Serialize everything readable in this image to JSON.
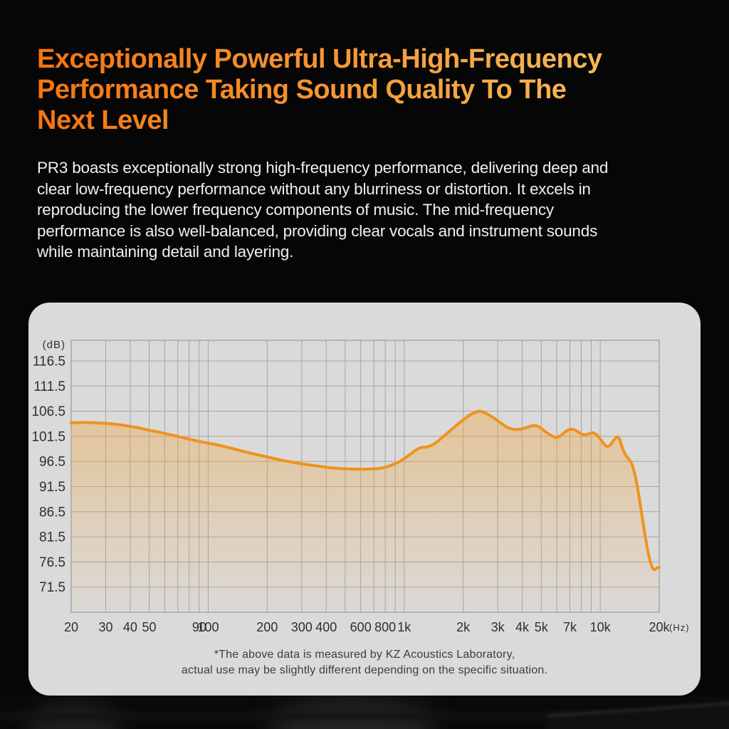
{
  "page": {
    "background_color": "#060606",
    "heading": {
      "lines": [
        "Exceptionally Powerful Ultra-High-Frequency",
        "Performance Taking Sound Quality To The",
        "Next Level"
      ],
      "gradient_colors": [
        "#f5740f",
        "#f59f3d",
        "#f2c767"
      ]
    },
    "paragraph_lines": [
      "PR3 boasts exceptionally strong high-frequency performance, delivering deep and",
      "clear low-frequency performance without any blurriness or distortion. It excels in",
      "reproducing the lower frequency components of music. The mid-frequency",
      "performance is also well-balanced, providing clear vocals and instrument sounds",
      "while maintaining detail and layering."
    ]
  },
  "chart_data": {
    "type": "area",
    "title": "",
    "xlabel": "(Hz)",
    "ylabel": "(dB)",
    "x_scale": "log",
    "x_range": [
      20,
      20000
    ],
    "y_top_value": 120.6,
    "y_bottom_value": 66.5,
    "y_gridline_values": [
      116.5,
      111.5,
      106.5,
      101.5,
      96.5,
      91.5,
      86.5,
      81.5,
      76.5,
      71.5
    ],
    "x_gridline_values": [
      20,
      30,
      40,
      50,
      60,
      70,
      80,
      90,
      100,
      200,
      300,
      400,
      500,
      600,
      700,
      800,
      900,
      1000,
      2000,
      3000,
      4000,
      5000,
      6000,
      7000,
      8000,
      9000,
      10000,
      20000
    ],
    "x_tick_labels": [
      {
        "f": 20,
        "t": "20"
      },
      {
        "f": 30,
        "t": "30"
      },
      {
        "f": 40,
        "t": "40"
      },
      {
        "f": 50,
        "t": "50"
      },
      {
        "f": 90,
        "t": "90"
      },
      {
        "f": 100,
        "t": "100"
      },
      {
        "f": 200,
        "t": "200"
      },
      {
        "f": 300,
        "t": "300"
      },
      {
        "f": 400,
        "t": "400"
      },
      {
        "f": 600,
        "t": "600"
      },
      {
        "f": 800,
        "t": "800"
      },
      {
        "f": 1000,
        "t": "1k"
      },
      {
        "f": 2000,
        "t": "2k"
      },
      {
        "f": 3000,
        "t": "3k"
      },
      {
        "f": 4000,
        "t": "4k"
      },
      {
        "f": 5000,
        "t": "5k"
      },
      {
        "f": 7000,
        "t": "7k"
      },
      {
        "f": 10000,
        "t": "10k"
      },
      {
        "f": 20000,
        "t": "20k"
      }
    ],
    "grid": true,
    "legend": "none",
    "colors": {
      "card_bg": "#dadada",
      "grid": "#a5a5a5",
      "border": "#9a9a9a",
      "tick_text": "#2f2f2f",
      "curve": "#f0921e",
      "fill_top": "rgba(242,160,44,0.50)",
      "fill_bottom": "rgba(242,160,44,0.02)"
    },
    "series": [
      {
        "name": "response",
        "color": "#f0921e",
        "points": [
          [
            20,
            104.2
          ],
          [
            24,
            104.25
          ],
          [
            28,
            104.15
          ],
          [
            33,
            103.95
          ],
          [
            38,
            103.6
          ],
          [
            44,
            103.2
          ],
          [
            50,
            102.7
          ],
          [
            58,
            102.2
          ],
          [
            66,
            101.7
          ],
          [
            75,
            101.2
          ],
          [
            85,
            100.7
          ],
          [
            95,
            100.3
          ],
          [
            105,
            100.0
          ],
          [
            120,
            99.5
          ],
          [
            135,
            99.0
          ],
          [
            155,
            98.4
          ],
          [
            180,
            97.8
          ],
          [
            210,
            97.2
          ],
          [
            240,
            96.7
          ],
          [
            275,
            96.3
          ],
          [
            315,
            95.9
          ],
          [
            360,
            95.6
          ],
          [
            410,
            95.3
          ],
          [
            470,
            95.1
          ],
          [
            530,
            95.0
          ],
          [
            600,
            94.95
          ],
          [
            670,
            95.0
          ],
          [
            740,
            95.1
          ],
          [
            810,
            95.4
          ],
          [
            880,
            95.9
          ],
          [
            950,
            96.5
          ],
          [
            1020,
            97.3
          ],
          [
            1090,
            98.1
          ],
          [
            1160,
            98.9
          ],
          [
            1230,
            99.3
          ],
          [
            1300,
            99.35
          ],
          [
            1380,
            99.7
          ],
          [
            1480,
            100.5
          ],
          [
            1600,
            101.6
          ],
          [
            1750,
            102.9
          ],
          [
            1900,
            104.1
          ],
          [
            2050,
            105.1
          ],
          [
            2200,
            105.9
          ],
          [
            2350,
            106.4
          ],
          [
            2450,
            106.5
          ],
          [
            2600,
            106.1
          ],
          [
            2750,
            105.6
          ],
          [
            3000,
            104.6
          ],
          [
            3200,
            103.8
          ],
          [
            3400,
            103.2
          ],
          [
            3600,
            102.9
          ],
          [
            3800,
            102.85
          ],
          [
            4100,
            103.1
          ],
          [
            4400,
            103.5
          ],
          [
            4700,
            103.6
          ],
          [
            5000,
            103.1
          ],
          [
            5300,
            102.3
          ],
          [
            5600,
            101.7
          ],
          [
            5900,
            101.3
          ],
          [
            6200,
            101.5
          ],
          [
            6500,
            102.1
          ],
          [
            6800,
            102.7
          ],
          [
            7100,
            102.9
          ],
          [
            7400,
            102.8
          ],
          [
            7700,
            102.4
          ],
          [
            8000,
            102.0
          ],
          [
            8300,
            101.8
          ],
          [
            8600,
            101.9
          ],
          [
            8900,
            102.1
          ],
          [
            9200,
            102.2
          ],
          [
            9600,
            101.8
          ],
          [
            10000,
            101.0
          ],
          [
            10400,
            100.1
          ],
          [
            10800,
            99.5
          ],
          [
            11200,
            99.7
          ],
          [
            11600,
            100.5
          ],
          [
            12000,
            101.2
          ],
          [
            12300,
            101.4
          ],
          [
            12600,
            100.7
          ],
          [
            12900,
            99.5
          ],
          [
            13300,
            98.2
          ],
          [
            13700,
            97.4
          ],
          [
            14100,
            96.8
          ],
          [
            14500,
            96.0
          ],
          [
            15000,
            94.0
          ],
          [
            15500,
            91.3
          ],
          [
            16000,
            88.0
          ],
          [
            16500,
            84.6
          ],
          [
            17000,
            81.4
          ],
          [
            17500,
            78.7
          ],
          [
            18000,
            76.6
          ],
          [
            18400,
            75.5
          ],
          [
            18800,
            75.0
          ],
          [
            19200,
            75.1
          ],
          [
            19600,
            75.4
          ],
          [
            20000,
            75.4
          ]
        ]
      }
    ],
    "footnote_lines": [
      "*The above data is measured by KZ Acoustics Laboratory,",
      "actual use may be slightly different depending on the specific situation."
    ]
  }
}
